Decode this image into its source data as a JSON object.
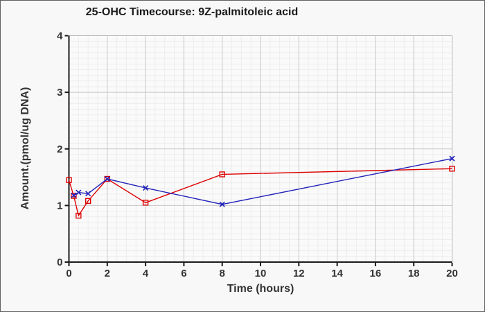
{
  "chart_data": {
    "type": "line",
    "title": "25-OHC Timecourse: 9Z-palmitoleic acid",
    "xlabel": "Time (hours)",
    "ylabel": "Amount.(pmol/ug DNA)",
    "xlim": [
      0,
      20
    ],
    "ylim": [
      0,
      4
    ],
    "xticks": [
      0,
      2,
      4,
      6,
      8,
      10,
      12,
      14,
      16,
      18,
      20
    ],
    "yticks": [
      0,
      1,
      2,
      3,
      4
    ],
    "minor_x_step": 0.5,
    "minor_y_step": 0.1,
    "grid": true,
    "legend": "none",
    "style": {
      "figure_bg": "#f8f8f8",
      "plot_bg": "#fafafa",
      "minor_grid_color": "#ededed",
      "major_grid_color": "#c6c6c6",
      "frame_color": "#b4b4b4",
      "axis_color": "#1a1a1a",
      "tick_label_color": "#333333"
    },
    "series": [
      {
        "name": "series-1-red-squares",
        "color": "#dd0000",
        "marker": "open-square",
        "points": [
          [
            0,
            1.45
          ],
          [
            0.25,
            1.17
          ],
          [
            0.5,
            0.82
          ],
          [
            1,
            1.08
          ],
          [
            2,
            1.47
          ],
          [
            4,
            1.05
          ],
          [
            8,
            1.55
          ],
          [
            20,
            1.65
          ]
        ]
      },
      {
        "name": "series-2-blue-x",
        "color": "#2222bb",
        "marker": "x",
        "points": [
          [
            0.25,
            1.18
          ],
          [
            0.5,
            1.23
          ],
          [
            1,
            1.21
          ],
          [
            2,
            1.47
          ],
          [
            4,
            1.31
          ],
          [
            8,
            1.02
          ],
          [
            20,
            1.83
          ]
        ]
      }
    ]
  }
}
